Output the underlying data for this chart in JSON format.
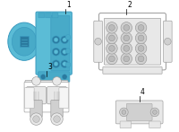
{
  "bg_color": "#ffffff",
  "blue_fill": "#5bbcd6",
  "blue_edge": "#3a9abf",
  "blue_dark": "#2a7a9f",
  "blue_mid": "#48aac8",
  "gray_edge": "#999999",
  "gray_fill": "#e8e8e8",
  "gray_mid": "#d0d0d0",
  "gray_dark": "#888888",
  "black": "#000000",
  "labels": [
    "1",
    "2",
    "3",
    "4"
  ],
  "figsize": [
    2.0,
    1.47
  ],
  "dpi": 100
}
